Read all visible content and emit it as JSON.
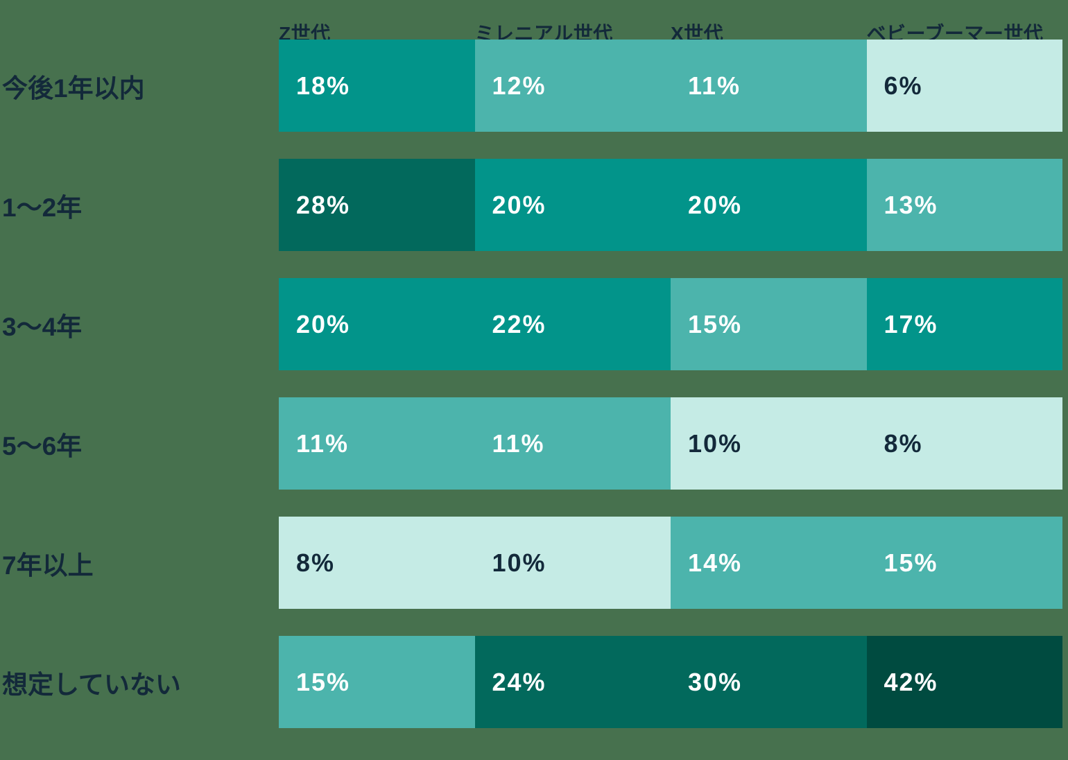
{
  "background_color": "#47714E",
  "label_color": "#13293A",
  "palette": {
    "mint": {
      "bg": "#C5EBE5",
      "fg": "#13293A"
    },
    "soft": {
      "bg": "#4CB4AC",
      "fg": "#FFFFFF"
    },
    "teal": {
      "bg": "#02948A",
      "fg": "#FFFFFF"
    },
    "deep": {
      "bg": "#02695C",
      "fg": "#FFFFFF"
    },
    "darkest": {
      "bg": "#004B40",
      "fg": "#FFFFFF"
    }
  },
  "chart_data": {
    "type": "heatmap",
    "title": "",
    "columns": [
      "Z世代",
      "ミレニアル世代",
      "X世代",
      "ベビーブーマー世代"
    ],
    "rows": [
      "今後1年以内",
      "1〜2年",
      "3〜4年",
      "5〜6年",
      "7年以上",
      "想定していない"
    ],
    "values": [
      [
        18,
        12,
        11,
        6
      ],
      [
        28,
        20,
        20,
        13
      ],
      [
        20,
        22,
        15,
        17
      ],
      [
        11,
        11,
        10,
        8
      ],
      [
        8,
        10,
        14,
        15
      ],
      [
        15,
        24,
        30,
        42
      ]
    ],
    "unit": "%",
    "legend_position": "none",
    "grid": false,
    "cells": [
      [
        {
          "label": "18%",
          "tone": "teal"
        },
        {
          "label": "12%",
          "tone": "soft"
        },
        {
          "label": "11%",
          "tone": "soft"
        },
        {
          "label": "6%",
          "tone": "mint"
        }
      ],
      [
        {
          "label": "28%",
          "tone": "deep"
        },
        {
          "label": "20%",
          "tone": "teal"
        },
        {
          "label": "20%",
          "tone": "teal"
        },
        {
          "label": "13%",
          "tone": "soft"
        }
      ],
      [
        {
          "label": "20%",
          "tone": "teal"
        },
        {
          "label": "22%",
          "tone": "teal"
        },
        {
          "label": "15%",
          "tone": "soft"
        },
        {
          "label": "17%",
          "tone": "teal"
        }
      ],
      [
        {
          "label": "11%",
          "tone": "soft"
        },
        {
          "label": "11%",
          "tone": "soft"
        },
        {
          "label": "10%",
          "tone": "mint"
        },
        {
          "label": "8%",
          "tone": "mint"
        }
      ],
      [
        {
          "label": "8%",
          "tone": "mint"
        },
        {
          "label": "10%",
          "tone": "mint"
        },
        {
          "label": "14%",
          "tone": "soft"
        },
        {
          "label": "15%",
          "tone": "soft"
        }
      ],
      [
        {
          "label": "15%",
          "tone": "soft"
        },
        {
          "label": "24%",
          "tone": "deep"
        },
        {
          "label": "30%",
          "tone": "deep"
        },
        {
          "label": "42%",
          "tone": "darkest"
        }
      ]
    ]
  }
}
